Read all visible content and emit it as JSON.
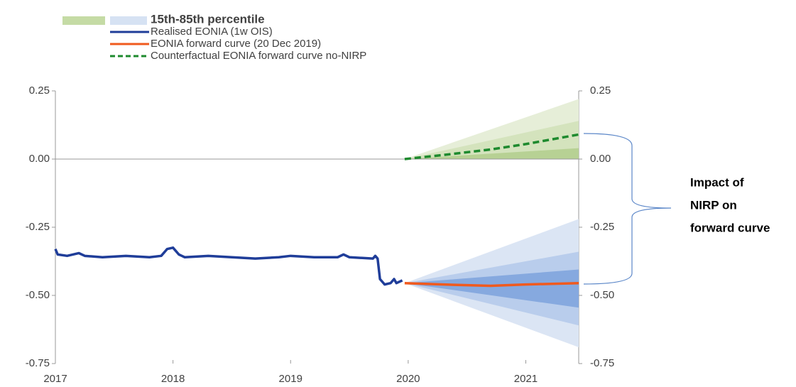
{
  "chart_data": {
    "type": "line",
    "legend_band": {
      "label": "15th-85th percentile",
      "colors": [
        "#c5dba5",
        "#d6e2f3"
      ]
    },
    "annotation": [
      "Impact of",
      "NIRP on",
      "forward curve"
    ],
    "xlim": [
      2017,
      2021.45
    ],
    "xticks": [
      2017,
      2018,
      2019,
      2020,
      2021
    ],
    "ylim": [
      -0.75,
      0.25
    ],
    "yticks": [
      {
        "value": 0.25,
        "label": "0.25"
      },
      {
        "value": 0,
        "label": "0.00"
      },
      {
        "value": -0.25,
        "label": "-0.25"
      },
      {
        "value": -0.5,
        "label": "-0.50"
      },
      {
        "value": -0.75,
        "label": "-0.75"
      }
    ],
    "bands": [
      {
        "color": "#e6eed8",
        "x": [
          2019.97,
          2021.45
        ],
        "lower": [
          0,
          0
        ],
        "upper": [
          0,
          0.22
        ]
      },
      {
        "color": "#d4e3bd",
        "x": [
          2019.97,
          2021.45
        ],
        "lower": [
          0,
          0
        ],
        "upper": [
          0,
          0.14
        ]
      },
      {
        "color": "#b7d194",
        "x": [
          2019.97,
          2021.45
        ],
        "lower": [
          0,
          0
        ],
        "upper": [
          0,
          0.04
        ]
      },
      {
        "color": "#dbe5f4",
        "x": [
          2019.97,
          2021.45
        ],
        "lower": [
          -0.455,
          -0.69
        ],
        "upper": [
          -0.455,
          -0.22
        ]
      },
      {
        "color": "#b9cdec",
        "x": [
          2019.97,
          2021.45
        ],
        "lower": [
          -0.455,
          -0.61
        ],
        "upper": [
          -0.455,
          -0.34
        ]
      },
      {
        "color": "#86a9df",
        "x": [
          2019.97,
          2021.45
        ],
        "lower": [
          -0.455,
          -0.545
        ],
        "upper": [
          -0.455,
          -0.405
        ]
      }
    ],
    "series": [
      {
        "name": "Realised EONIA (1w OIS)",
        "color": "#1f3d99",
        "dash": false,
        "x": [
          2017.0,
          2017.02,
          2017.1,
          2017.2,
          2017.25,
          2017.4,
          2017.6,
          2017.8,
          2017.9,
          2017.95,
          2018.0,
          2018.05,
          2018.1,
          2018.3,
          2018.5,
          2018.7,
          2018.9,
          2019.0,
          2019.2,
          2019.4,
          2019.45,
          2019.5,
          2019.7,
          2019.72,
          2019.74,
          2019.76,
          2019.8,
          2019.85,
          2019.88,
          2019.9,
          2019.95
        ],
        "values": [
          -0.33,
          -0.35,
          -0.355,
          -0.345,
          -0.355,
          -0.36,
          -0.355,
          -0.36,
          -0.355,
          -0.33,
          -0.325,
          -0.35,
          -0.36,
          -0.355,
          -0.36,
          -0.365,
          -0.36,
          -0.355,
          -0.36,
          -0.36,
          -0.35,
          -0.36,
          -0.365,
          -0.355,
          -0.365,
          -0.44,
          -0.46,
          -0.455,
          -0.44,
          -0.455,
          -0.445
        ]
      },
      {
        "name": "EONIA forward curve (20 Dec 2019)",
        "color": "#f05a1e",
        "dash": false,
        "x": [
          2019.97,
          2020.3,
          2020.7,
          2021.0,
          2021.45
        ],
        "values": [
          -0.455,
          -0.46,
          -0.465,
          -0.46,
          -0.455
        ]
      },
      {
        "name": "Counterfactual EONIA forward curve no-NIRP",
        "color": "#1e8a2e",
        "dash": true,
        "x": [
          2019.97,
          2020.3,
          2020.7,
          2021.0,
          2021.45
        ],
        "values": [
          0,
          0.015,
          0.035,
          0.055,
          0.09
        ]
      }
    ]
  }
}
